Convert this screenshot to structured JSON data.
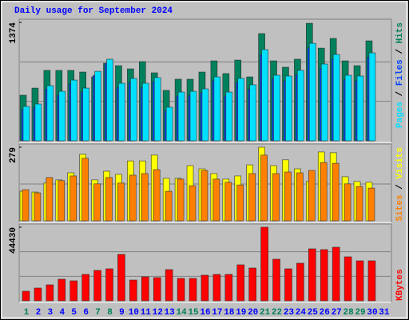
{
  "chart_data": [
    {
      "type": "bar",
      "title": "Daily usage for September 2024",
      "title_color": "#0000ff",
      "ylim": [
        0,
        1374
      ],
      "yticks": [
        1374
      ],
      "legend_separator": " / ",
      "series": [
        {
          "name": "Hits",
          "color": "#00805c",
          "values": [
            529,
            612,
            817,
            817,
            817,
            798,
            742,
            900,
            872,
            835,
            919,
            789,
            585,
            715,
            715,
            798,
            928,
            780,
            937,
            742,
            1244,
            928,
            854,
            947,
            1364,
            1076,
            1188,
            928,
            872,
            1160,
            null
          ]
        },
        {
          "name": "Files",
          "color": "#0040ff",
          "values": [
            360,
            390,
            600,
            530,
            660,
            570,
            760,
            900,
            620,
            680,
            620,
            690,
            350,
            520,
            530,
            560,
            700,
            520,
            680,
            600,
            1000,
            720,
            700,
            770,
            1080,
            840,
            950,
            710,
            700,
            970,
            null
          ]
        },
        {
          "name": "Pages",
          "color": "#00e0ff",
          "values": [
            399,
            427,
            640,
            575,
            705,
            612,
            807,
            947,
            668,
            724,
            668,
            733,
            390,
            566,
            575,
            603,
            742,
            566,
            724,
            650,
            1058,
            761,
            752,
            817,
            1132,
            891,
            1002,
            761,
            752,
            1021,
            null
          ]
        }
      ]
    },
    {
      "type": "bar",
      "ylim": [
        0,
        279
      ],
      "yticks": [
        279
      ],
      "legend_separator": " / ",
      "series": [
        {
          "name": "Visits",
          "color": "#ffff00",
          "values": [
            112,
            109,
            143,
            155,
            182,
            252,
            155,
            188,
            176,
            227,
            227,
            249,
            161,
            161,
            209,
            197,
            179,
            158,
            170,
            212,
            279,
            209,
            231,
            197,
            149,
            261,
            258,
            167,
            149,
            146,
            null
          ]
        },
        {
          "name": "Sites",
          "color": "#ff8000",
          "values": [
            118,
            106,
            164,
            152,
            170,
            237,
            140,
            164,
            143,
            173,
            179,
            194,
            112,
            158,
            133,
            191,
            158,
            146,
            136,
            179,
            249,
            179,
            185,
            182,
            191,
            221,
            218,
            140,
            130,
            124,
            null
          ]
        }
      ]
    },
    {
      "type": "bar",
      "ylim": [
        0,
        44430
      ],
      "yticks": [
        44430
      ],
      "categories": [
        "1",
        "2",
        "3",
        "4",
        "5",
        "6",
        "7",
        "8",
        "9",
        "10",
        "11",
        "12",
        "13",
        "14",
        "15",
        "16",
        "17",
        "18",
        "19",
        "20",
        "21",
        "22",
        "23",
        "24",
        "25",
        "26",
        "27",
        "28",
        "29",
        "30",
        "31"
      ],
      "weekday_color": "#0000ff",
      "weekend_color": "#00805c",
      "weekend_indices": [
        0,
        6,
        7,
        13,
        14,
        20,
        21,
        27,
        28
      ],
      "series": [
        {
          "name": "KBytes",
          "color": "#ff0000",
          "values": [
            5796,
            7728,
            9660,
            13041,
            12075,
            15939,
            18354,
            19320,
            28014,
            12558,
            14490,
            14007,
            18837,
            13524,
            13524,
            15456,
            15939,
            15939,
            21735,
            19803,
            44430,
            25116,
            19320,
            22701,
            31395,
            30912,
            32361,
            26565,
            24150,
            24150,
            null
          ]
        }
      ]
    }
  ]
}
